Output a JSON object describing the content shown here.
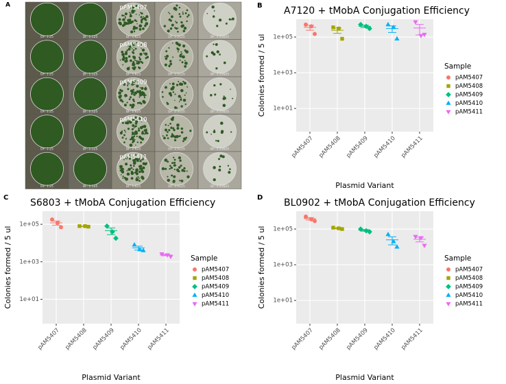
{
  "panel_a": {
    "label": "A",
    "row_labels": [
      "pAM5407",
      "pAM5408",
      "pAM5409",
      "pAM5410",
      "pAM5411"
    ],
    "column_labels": [
      "DF: 1:25",
      "DF: 1:125",
      "DF: 1:625",
      "DF: 1:3125",
      "DF: 1:15625"
    ]
  },
  "chart_data": [
    {
      "type": "scatter",
      "panel_label": "B",
      "title": "A7120 + tMobA Conjugation Efficiency",
      "x_label": "Plasmid Variant",
      "y_label": "Colonies formed / 5 ul",
      "legend_title": "Sample",
      "y_scale": "log",
      "grid": true,
      "legend": "right",
      "categories": [
        "pAM5407",
        "pAM5408",
        "pAM5409",
        "pAM5410",
        "pAM5411"
      ],
      "ylim": [
        0.5,
        1000000
      ],
      "yticks": [
        {
          "value": 10,
          "label": "1e+01"
        },
        {
          "value": 1000,
          "label": "1e+03"
        },
        {
          "value": 100000,
          "label": "1e+05"
        }
      ],
      "series": [
        {
          "name": "pAM5407",
          "color": "#F8766D",
          "shape": "circle",
          "values": [
            500000,
            400000,
            150000
          ],
          "mean": 350000,
          "se": 110000
        },
        {
          "name": "pAM5408",
          "color": "#A3A500",
          "shape": "square",
          "values": [
            350000,
            300000,
            80000
          ],
          "mean": 240000,
          "se": 80000
        },
        {
          "name": "pAM5409",
          "color": "#00BF7D",
          "shape": "diamond",
          "values": [
            500000,
            400000,
            300000
          ],
          "mean": 400000,
          "se": 60000
        },
        {
          "name": "pAM5410",
          "color": "#00B0F6",
          "shape": "triangle-up",
          "values": [
            500000,
            350000,
            80000
          ],
          "mean": 300000,
          "se": 120000
        },
        {
          "name": "pAM5411",
          "color": "#E76BF3",
          "shape": "triangle-down",
          "values": [
            700000,
            120000,
            140000
          ],
          "mean": 320000,
          "se": 190000
        }
      ]
    },
    {
      "type": "scatter",
      "panel_label": "C",
      "title": "S6803 + tMobA Conjugation Efficiency",
      "x_label": "Plasmid Variant",
      "y_label": "Colonies formed / 5 ul",
      "legend_title": "Sample",
      "y_scale": "log",
      "grid": true,
      "legend": "right",
      "categories": [
        "pAM5407",
        "pAM5408",
        "pAM5409",
        "pAM5410",
        "pAM5411"
      ],
      "ylim": [
        0.5,
        500000
      ],
      "yticks": [
        {
          "value": 10,
          "label": "1e+01"
        },
        {
          "value": 1000,
          "label": "1e+03"
        },
        {
          "value": 100000,
          "label": "1e+05"
        }
      ],
      "series": [
        {
          "name": "pAM5407",
          "color": "#F8766D",
          "shape": "circle",
          "values": [
            180000,
            120000,
            70000
          ],
          "mean": 120000,
          "se": 30000
        },
        {
          "name": "pAM5408",
          "color": "#A3A500",
          "shape": "square",
          "values": [
            80000,
            80000,
            75000
          ],
          "mean": 78000,
          "se": 2000
        },
        {
          "name": "pAM5409",
          "color": "#00BF7D",
          "shape": "diamond",
          "values": [
            80000,
            40000,
            18000
          ],
          "mean": 46000,
          "se": 18000
        },
        {
          "name": "pAM5410",
          "color": "#00B0F6",
          "shape": "triangle-up",
          "values": [
            8000,
            4500,
            4000
          ],
          "mean": 5500,
          "se": 1300
        },
        {
          "name": "pAM5411",
          "color": "#E76BF3",
          "shape": "triangle-down",
          "values": [
            2600,
            2300,
            1900
          ],
          "mean": 2300,
          "se": 200
        }
      ]
    },
    {
      "type": "scatter",
      "panel_label": "D",
      "title": "BL0902 + tMobA Conjugation Efficiency",
      "x_label": "Plasmid Variant",
      "y_label": "Colonies formed / 5 ul",
      "legend_title": "Sample",
      "y_scale": "log",
      "grid": true,
      "legend": "right",
      "categories": [
        "pAM5407",
        "pAM5408",
        "pAM5409",
        "pAM5410",
        "pAM5411"
      ],
      "ylim": [
        0.5,
        1000000
      ],
      "yticks": [
        {
          "value": 10,
          "label": "1e+01"
        },
        {
          "value": 1000,
          "label": "1e+03"
        },
        {
          "value": 100000,
          "label": "1e+05"
        }
      ],
      "series": [
        {
          "name": "pAM5407",
          "color": "#F8766D",
          "shape": "circle",
          "values": [
            500000,
            350000,
            280000
          ],
          "mean": 380000,
          "se": 60000
        },
        {
          "name": "pAM5408",
          "color": "#A3A500",
          "shape": "square",
          "values": [
            120000,
            110000,
            100000
          ],
          "mean": 110000,
          "se": 6000
        },
        {
          "name": "pAM5409",
          "color": "#00BF7D",
          "shape": "diamond",
          "values": [
            100000,
            80000,
            70000
          ],
          "mean": 85000,
          "se": 9000
        },
        {
          "name": "pAM5410",
          "color": "#00B0F6",
          "shape": "triangle-up",
          "values": [
            50000,
            20000,
            10000
          ],
          "mean": 25000,
          "se": 12000
        },
        {
          "name": "pAM5411",
          "color": "#E76BF3",
          "shape": "triangle-down",
          "values": [
            38000,
            32000,
            12000
          ],
          "mean": 27000,
          "se": 8000
        }
      ]
    }
  ]
}
